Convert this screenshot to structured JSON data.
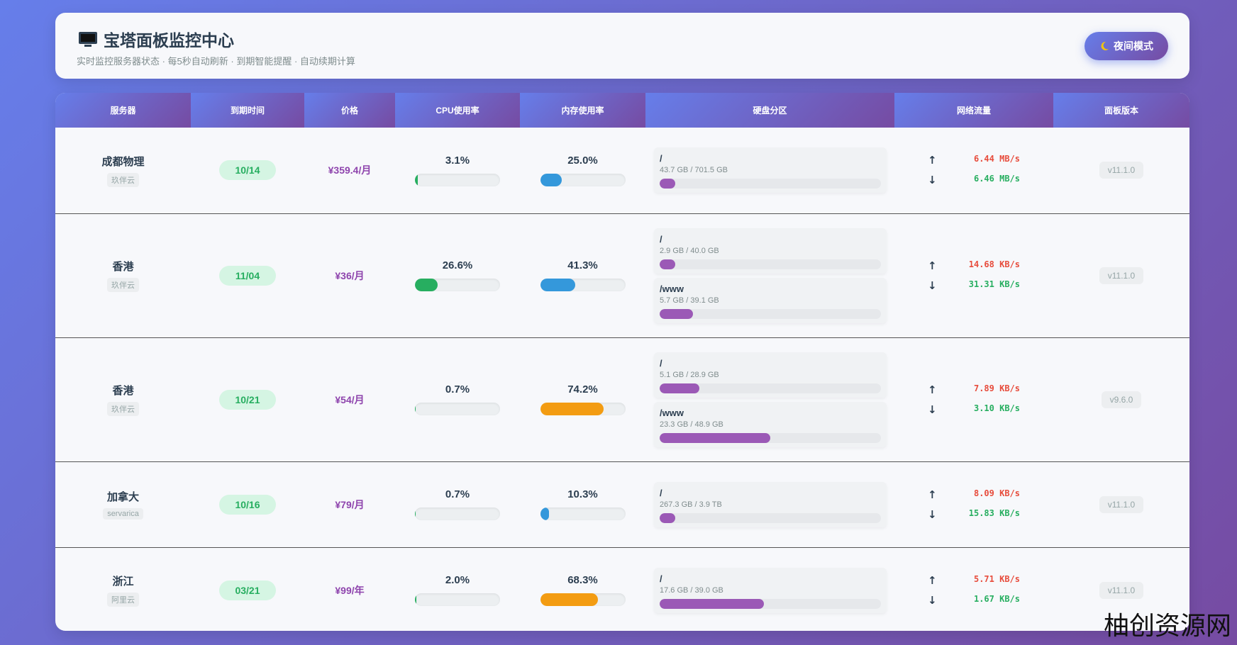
{
  "header": {
    "title": "宝塔面板监控中心",
    "subtitle": "实时监控服务器状态 · 每5秒自动刷新 · 到期智能提醒 · 自动续期计算",
    "button": "夜间模式"
  },
  "arrows": {
    "up": "↑",
    "down": "↓"
  },
  "table": {
    "columns": [
      "服务器",
      "到期时间",
      "价格",
      "CPU使用率",
      "内存使用率",
      "硬盘分区",
      "网络流量",
      "面板版本"
    ],
    "rows": [
      {
        "name": "成都物理",
        "provider": "玖伴云",
        "expiry": "10/14",
        "price": "¥359.4/月",
        "cpu": {
          "value": 3.1,
          "label": "3.1%",
          "color": "#27ae60"
        },
        "mem": {
          "value": 25.0,
          "label": "25.0%",
          "color": "#3498db"
        },
        "disks": [
          {
            "path": "/",
            "usage": "43.7 GB / 701.5 GB",
            "percent": 7
          }
        ],
        "up": "6.44 MB/s",
        "down": "6.46 MB/s",
        "version": "v11.1.0"
      },
      {
        "name": "香港",
        "provider": "玖伴云",
        "expiry": "11/04",
        "price": "¥36/月",
        "cpu": {
          "value": 26.6,
          "label": "26.6%",
          "color": "#27ae60"
        },
        "mem": {
          "value": 41.3,
          "label": "41.3%",
          "color": "#3498db"
        },
        "disks": [
          {
            "path": "/",
            "usage": "2.9 GB / 40.0 GB",
            "percent": 7
          },
          {
            "path": "/www",
            "usage": "5.7 GB / 39.1 GB",
            "percent": 15
          }
        ],
        "up": "14.68 KB/s",
        "down": "31.31 KB/s",
        "version": "v11.1.0"
      },
      {
        "name": "香港",
        "provider": "玖伴云",
        "expiry": "10/21",
        "price": "¥54/月",
        "cpu": {
          "value": 0.7,
          "label": "0.7%",
          "color": "#27ae60"
        },
        "mem": {
          "value": 74.2,
          "label": "74.2%",
          "color": "#f39c12"
        },
        "disks": [
          {
            "path": "/",
            "usage": "5.1 GB / 28.9 GB",
            "percent": 18
          },
          {
            "path": "/www",
            "usage": "23.3 GB / 48.9 GB",
            "percent": 50
          }
        ],
        "up": "7.89 KB/s",
        "down": "3.10 KB/s",
        "version": "v9.6.0"
      },
      {
        "name": "加拿大",
        "provider": "servarica",
        "expiry": "10/16",
        "price": "¥79/月",
        "cpu": {
          "value": 0.7,
          "label": "0.7%",
          "color": "#27ae60"
        },
        "mem": {
          "value": 10.3,
          "label": "10.3%",
          "color": "#3498db"
        },
        "disks": [
          {
            "path": "/",
            "usage": "267.3 GB / 3.9 TB",
            "percent": 7
          }
        ],
        "up": "8.09 KB/s",
        "down": "15.83 KB/s",
        "version": "v11.1.0"
      },
      {
        "name": "浙江",
        "provider": "阿里云",
        "expiry": "03/21",
        "price": "¥99/年",
        "cpu": {
          "value": 2.0,
          "label": "2.0%",
          "color": "#27ae60"
        },
        "mem": {
          "value": 68.3,
          "label": "68.3%",
          "color": "#f39c12"
        },
        "disks": [
          {
            "path": "/",
            "usage": "17.6 GB / 39.0 GB",
            "percent": 47
          }
        ],
        "up": "5.71 KB/s",
        "down": "1.67 KB/s",
        "version": "v11.1.0"
      }
    ]
  },
  "watermark": "柚创资源网"
}
